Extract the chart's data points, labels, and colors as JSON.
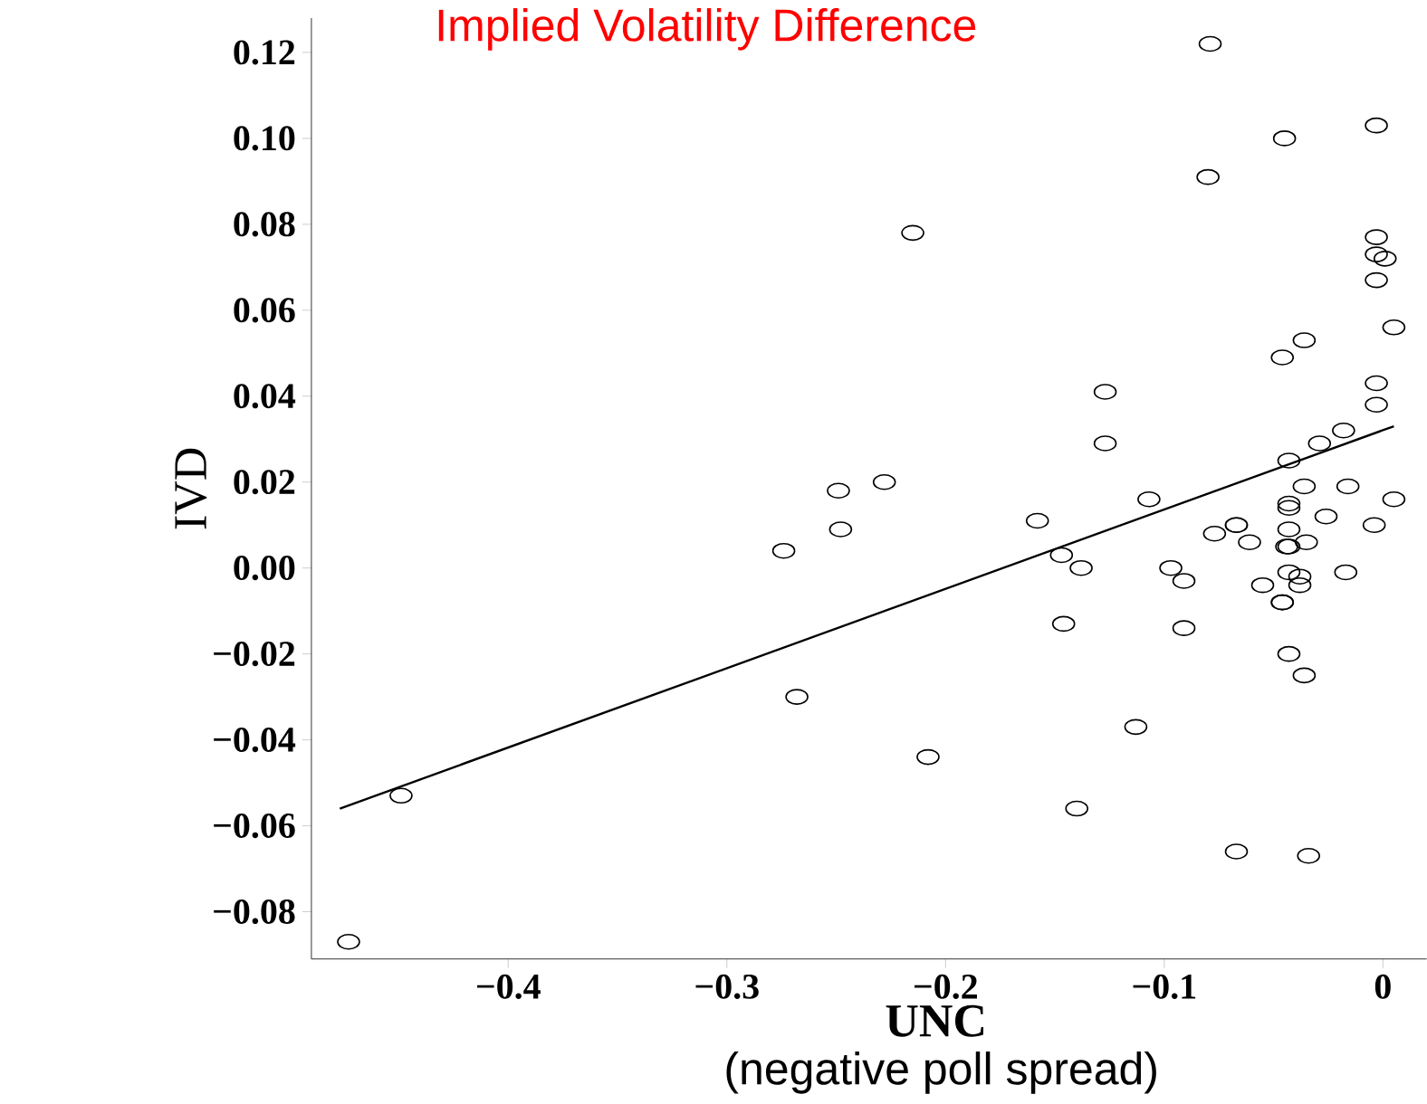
{
  "chart_data": {
    "type": "scatter",
    "title": "Implied Volatility Difference",
    "xlabel": "UNC",
    "ylabel": "IVD",
    "annotations": [
      "(negative poll spread)"
    ],
    "xlim": [
      -0.49,
      0.02
    ],
    "ylim": [
      -0.091,
      0.128
    ],
    "xticks": [
      {
        "value": -0.4,
        "label": "−0.4"
      },
      {
        "value": -0.3,
        "label": "−0.3"
      },
      {
        "value": -0.2,
        "label": "−0.2"
      },
      {
        "value": -0.1,
        "label": "−0.1"
      },
      0
    ],
    "yticks": [
      {
        "value": -0.08,
        "label": "−0.08"
      },
      {
        "value": -0.06,
        "label": "−0.06"
      },
      {
        "value": -0.04,
        "label": "−0.04"
      },
      {
        "value": -0.02,
        "label": "−0.02"
      },
      {
        "value": 0,
        "label": "0.00"
      },
      {
        "value": 0.02,
        "label": "0.02"
      },
      {
        "value": 0.04,
        "label": "0.04"
      },
      {
        "value": 0.06,
        "label": "0.06"
      },
      {
        "value": 0.08,
        "label": "0.08"
      },
      {
        "value": 0.1,
        "label": "0.10"
      },
      {
        "value": 0.12,
        "label": "0.12"
      }
    ],
    "marker": "circle",
    "series": [
      {
        "color": "#000000",
        "x": [
          -0.473,
          -0.449,
          -0.274,
          -0.268,
          -0.249,
          -0.248,
          -0.228,
          -0.215,
          -0.208,
          -0.158,
          -0.147,
          -0.146,
          -0.14,
          -0.138,
          -0.127,
          -0.127,
          -0.113,
          -0.107,
          -0.097,
          -0.091,
          -0.091,
          -0.079,
          -0.08,
          -0.077,
          -0.067,
          -0.067,
          -0.061,
          -0.055,
          -0.046,
          -0.045,
          -0.003,
          -0.003,
          -0.003,
          0.001,
          -0.003,
          0.005,
          -0.036,
          -0.046,
          -0.003,
          -0.003,
          -0.018,
          -0.029,
          -0.043,
          -0.036,
          -0.016,
          0.005,
          -0.043,
          -0.043,
          -0.026,
          -0.004,
          -0.067,
          -0.043,
          -0.035,
          -0.043,
          -0.044,
          -0.043,
          -0.038,
          -0.017,
          -0.038,
          -0.046,
          -0.043,
          -0.036,
          -0.034
        ],
        "values": [
          -0.087,
          -0.053,
          0.004,
          -0.03,
          0.018,
          0.009,
          0.02,
          0.078,
          -0.044,
          0.011,
          0.003,
          -0.013,
          -0.056,
          0.0,
          0.041,
          0.029,
          -0.037,
          0.016,
          0.0,
          -0.003,
          -0.014,
          0.122,
          0.091,
          0.008,
          0.01,
          -0.066,
          0.006,
          -0.004,
          -0.008,
          0.1,
          0.103,
          0.077,
          0.073,
          0.072,
          0.067,
          0.056,
          0.053,
          0.049,
          0.043,
          0.038,
          0.032,
          0.029,
          0.025,
          0.019,
          0.019,
          0.016,
          0.015,
          0.014,
          0.012,
          0.01,
          0.01,
          0.009,
          0.006,
          0.005,
          0.005,
          -0.001,
          -0.002,
          -0.001,
          -0.004,
          -0.008,
          -0.02,
          -0.025,
          -0.067
        ]
      },
      {
        "type": "line",
        "color": "#000000",
        "marker": "none",
        "x": [
          -0.477,
          0.005
        ],
        "values": [
          -0.056,
          0.033
        ]
      }
    ]
  }
}
